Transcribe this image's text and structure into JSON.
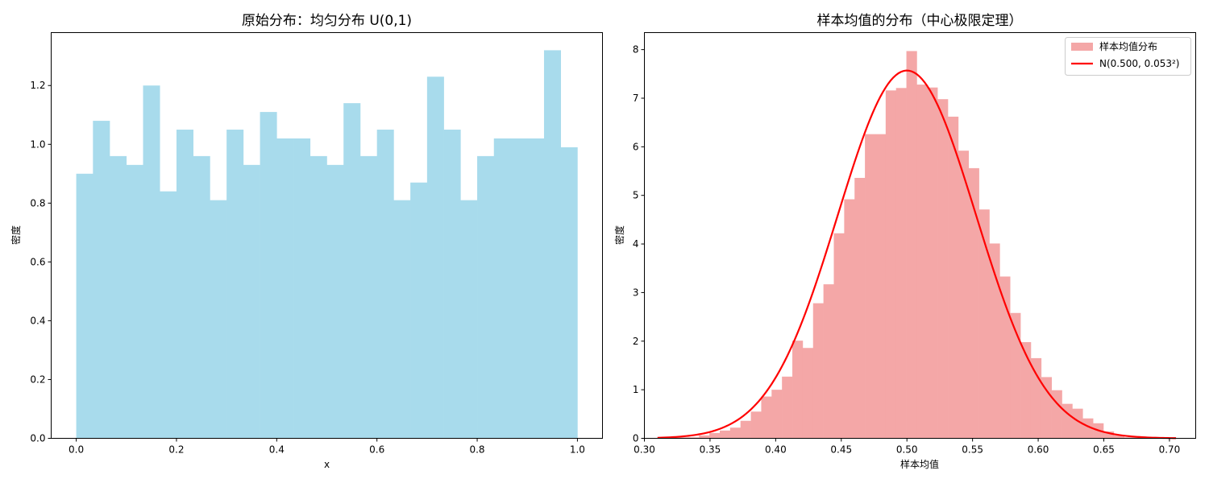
{
  "chart_data": [
    {
      "type": "bar",
      "title": "原始分布：均匀分布 U(0,1)",
      "xlabel": "x",
      "ylabel": "密度",
      "xlim": [
        -0.05,
        1.05
      ],
      "ylim": [
        0,
        1.38
      ],
      "xticks": [
        "0.0",
        "0.2",
        "0.4",
        "0.6",
        "0.8",
        "1.0"
      ],
      "yticks": [
        "0.0",
        "0.2",
        "0.4",
        "0.6",
        "0.8",
        "1.0",
        "1.2"
      ],
      "bin_range": [
        0,
        1
      ],
      "values": [
        0.9,
        1.08,
        0.96,
        0.93,
        1.2,
        0.84,
        1.05,
        0.96,
        0.81,
        1.05,
        0.93,
        1.11,
        1.02,
        1.02,
        0.96,
        0.93,
        1.14,
        0.96,
        1.05,
        0.81,
        0.87,
        1.23,
        1.05,
        0.81,
        0.96,
        1.02,
        1.02,
        1.02,
        1.32,
        0.99
      ],
      "color": "#a8dbec",
      "grid": false
    },
    {
      "type": "bar",
      "title": "样本均值的分布（中心极限定理）",
      "xlabel": "样本均值",
      "ylabel": "密度",
      "xlim": [
        0.3,
        0.72
      ],
      "ylim": [
        0,
        8.35
      ],
      "xticks": [
        "0.30",
        "0.35",
        "0.40",
        "0.45",
        "0.50",
        "0.55",
        "0.60",
        "0.65",
        "0.70"
      ],
      "yticks": [
        "0",
        "1",
        "2",
        "3",
        "4",
        "5",
        "6",
        "7",
        "8"
      ],
      "bin_range": [
        0.31,
        0.705
      ],
      "values": [
        0.02,
        0.02,
        0.02,
        0.02,
        0.06,
        0.11,
        0.16,
        0.22,
        0.36,
        0.55,
        0.86,
        1.0,
        1.27,
        2.01,
        1.86,
        2.78,
        3.17,
        4.22,
        4.92,
        5.36,
        6.26,
        6.26,
        7.16,
        7.21,
        7.97,
        7.28,
        7.22,
        6.98,
        6.62,
        5.92,
        5.56,
        4.71,
        4.01,
        3.33,
        2.58,
        1.98,
        1.65,
        1.26,
        0.99,
        0.71,
        0.61,
        0.41,
        0.31,
        0.14,
        0.06,
        0.02,
        0.02,
        0.01,
        0.01,
        0.0
      ],
      "color": "#f4a7a7",
      "curve": {
        "mean": 0.5,
        "sd": 0.0527,
        "x_range": [
          0.31,
          0.705
        ],
        "color": "#ff0000"
      },
      "legend": {
        "placement": "top-right",
        "entries": [
          {
            "label": "样本均值分布",
            "kind": "patch",
            "color": "#f4a7a7"
          },
          {
            "label": "N(0.500, 0.053²)",
            "kind": "line",
            "color": "#ff0000"
          }
        ]
      },
      "grid": false
    }
  ]
}
